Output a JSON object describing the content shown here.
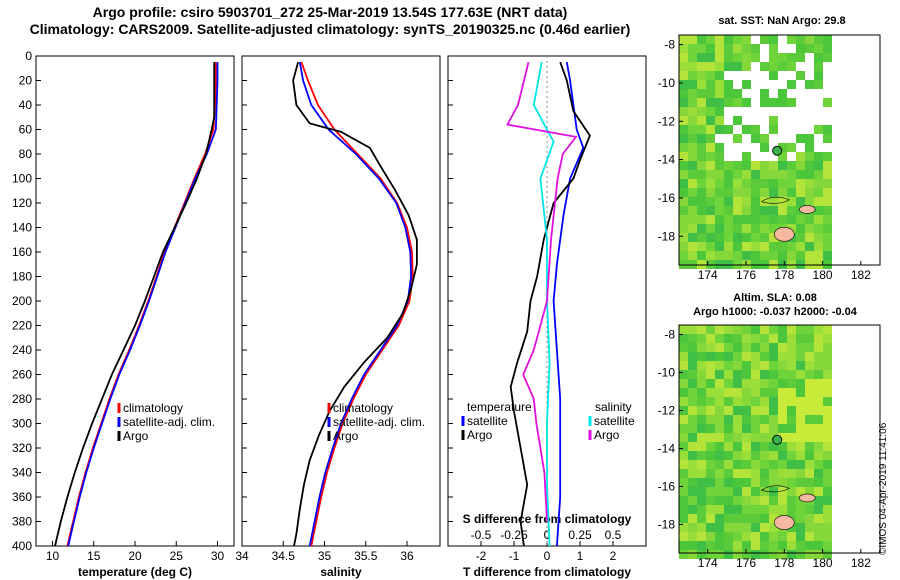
{
  "title_line1": "Argo profile: csiro 5903701_272 25-Mar-2019 13.54S 177.63E (NRT data)",
  "title_line2": "Climatology: CARS2009. Satellite-adjusted climatology: synTS_20190325.nc (0.46d earlier)",
  "watermark": "©IMOS 04-Apr-2019 11:41:06",
  "colors": {
    "climatology": "#ff0000",
    "satellite": "#0000ff",
    "argo": "#000000",
    "sal_satellite": "#00e5e5",
    "sal_argo": "#e010e0"
  },
  "chart_data": [
    {
      "type": "line",
      "id": "temperature",
      "xlabel": "temperature (deg C)",
      "ylabel": "",
      "xlim": [
        8,
        32
      ],
      "ylim": [
        400,
        0
      ],
      "xticks": [
        "10",
        "15",
        "20",
        "25",
        "30"
      ],
      "yticks": [
        "0",
        "20",
        "40",
        "60",
        "80",
        "100",
        "120",
        "140",
        "160",
        "180",
        "200",
        "220",
        "240",
        "260",
        "280",
        "300",
        "320",
        "340",
        "360",
        "380",
        "400"
      ],
      "legend": [
        "climatology",
        "satellite-adj. clim.",
        "Argo"
      ],
      "series": [
        {
          "name": "climatology",
          "color": "#ff0000",
          "points": [
            [
              29.8,
              5
            ],
            [
              29.8,
              20
            ],
            [
              29.7,
              40
            ],
            [
              29.5,
              60
            ],
            [
              28.5,
              80
            ],
            [
              27.2,
              100
            ],
            [
              26.0,
              120
            ],
            [
              24.8,
              140
            ],
            [
              23.6,
              160
            ],
            [
              22.6,
              180
            ],
            [
              21.6,
              200
            ],
            [
              20.5,
              220
            ],
            [
              19.3,
              240
            ],
            [
              18.0,
              260
            ],
            [
              16.9,
              280
            ],
            [
              15.9,
              300
            ],
            [
              14.9,
              320
            ],
            [
              14.0,
              340
            ],
            [
              13.2,
              360
            ],
            [
              12.5,
              380
            ],
            [
              11.8,
              400
            ]
          ]
        },
        {
          "name": "satellite-adj. clim.",
          "color": "#0000ff",
          "points": [
            [
              30.0,
              5
            ],
            [
              30.0,
              20
            ],
            [
              29.9,
              40
            ],
            [
              29.8,
              60
            ],
            [
              28.7,
              80
            ],
            [
              27.3,
              100
            ],
            [
              26.1,
              120
            ],
            [
              24.9,
              140
            ],
            [
              23.7,
              160
            ],
            [
              22.7,
              180
            ],
            [
              21.7,
              200
            ],
            [
              20.6,
              220
            ],
            [
              19.4,
              240
            ],
            [
              18.1,
              260
            ],
            [
              17.0,
              280
            ],
            [
              16.0,
              300
            ],
            [
              15.0,
              320
            ],
            [
              14.1,
              340
            ],
            [
              13.3,
              360
            ],
            [
              12.6,
              380
            ],
            [
              11.9,
              400
            ]
          ]
        },
        {
          "name": "Argo",
          "color": "#000000",
          "points": [
            [
              29.6,
              5
            ],
            [
              29.6,
              20
            ],
            [
              29.6,
              40
            ],
            [
              29.6,
              50
            ],
            [
              29.3,
              60
            ],
            [
              28.6,
              80
            ],
            [
              27.5,
              100
            ],
            [
              26.2,
              120
            ],
            [
              24.8,
              140
            ],
            [
              23.4,
              160
            ],
            [
              22.3,
              180
            ],
            [
              21.2,
              200
            ],
            [
              20.0,
              220
            ],
            [
              18.6,
              240
            ],
            [
              17.2,
              260
            ],
            [
              16.0,
              280
            ],
            [
              14.8,
              300
            ],
            [
              13.7,
              320
            ],
            [
              12.7,
              340
            ],
            [
              11.8,
              360
            ],
            [
              11.0,
              380
            ],
            [
              10.3,
              400
            ]
          ]
        }
      ]
    },
    {
      "type": "line",
      "id": "salinity",
      "xlabel": "salinity",
      "xlim": [
        34.0,
        36.4
      ],
      "ylim": [
        400,
        0
      ],
      "xticks": [
        "34",
        "34.5",
        "35",
        "35.5",
        "36"
      ],
      "legend": [
        "climatology",
        "satellite-adj. clim.",
        "Argo"
      ],
      "series": [
        {
          "name": "climatology",
          "color": "#ff0000",
          "points": [
            [
              34.72,
              5
            ],
            [
              34.8,
              20
            ],
            [
              34.92,
              40
            ],
            [
              35.12,
              60
            ],
            [
              35.4,
              80
            ],
            [
              35.68,
              100
            ],
            [
              35.88,
              120
            ],
            [
              36.0,
              140
            ],
            [
              36.06,
              160
            ],
            [
              36.07,
              180
            ],
            [
              36.03,
              200
            ],
            [
              35.9,
              220
            ],
            [
              35.7,
              240
            ],
            [
              35.5,
              260
            ],
            [
              35.35,
              280
            ],
            [
              35.22,
              300
            ],
            [
              35.12,
              320
            ],
            [
              35.03,
              340
            ],
            [
              34.96,
              360
            ],
            [
              34.9,
              380
            ],
            [
              34.84,
              400
            ]
          ]
        },
        {
          "name": "satellite-adj. clim.",
          "color": "#0000ff",
          "points": [
            [
              34.7,
              5
            ],
            [
              34.74,
              20
            ],
            [
              34.84,
              40
            ],
            [
              35.05,
              60
            ],
            [
              35.38,
              80
            ],
            [
              35.66,
              100
            ],
            [
              35.87,
              120
            ],
            [
              35.98,
              140
            ],
            [
              36.04,
              160
            ],
            [
              36.05,
              180
            ],
            [
              36.01,
              200
            ],
            [
              35.88,
              220
            ],
            [
              35.68,
              240
            ],
            [
              35.48,
              260
            ],
            [
              35.33,
              280
            ],
            [
              35.2,
              300
            ],
            [
              35.1,
              320
            ],
            [
              35.01,
              340
            ],
            [
              34.94,
              360
            ],
            [
              34.88,
              380
            ],
            [
              34.82,
              400
            ]
          ]
        },
        {
          "name": "Argo",
          "color": "#000000",
          "points": [
            [
              34.68,
              5
            ],
            [
              34.62,
              20
            ],
            [
              34.66,
              40
            ],
            [
              34.82,
              55
            ],
            [
              35.2,
              62
            ],
            [
              35.55,
              75
            ],
            [
              35.68,
              90
            ],
            [
              35.86,
              110
            ],
            [
              36.02,
              130
            ],
            [
              36.12,
              150
            ],
            [
              36.12,
              170
            ],
            [
              36.05,
              190
            ],
            [
              35.95,
              210
            ],
            [
              35.76,
              230
            ],
            [
              35.48,
              250
            ],
            [
              35.24,
              270
            ],
            [
              35.06,
              290
            ],
            [
              34.93,
              310
            ],
            [
              34.82,
              330
            ],
            [
              34.75,
              350
            ],
            [
              34.7,
              370
            ],
            [
              34.66,
              390
            ],
            [
              34.63,
              400
            ]
          ]
        }
      ]
    },
    {
      "type": "line",
      "id": "difference",
      "xlabel": "T difference from climatology",
      "x2label": "S difference from climatology",
      "xlim": [
        -3,
        3
      ],
      "ylim": [
        400,
        0
      ],
      "xticks": [
        "-2",
        "-1",
        "0",
        "1",
        "2"
      ],
      "x2ticks": [
        "-0.5",
        "-0.25",
        "0",
        "0.25",
        "0.5"
      ],
      "legend_left_title": "temperature",
      "legend_left": [
        "satellite",
        "Argo"
      ],
      "legend_right_title": "salinity",
      "legend_right": [
        "satellite",
        "Argo"
      ],
      "series": [
        {
          "name": "T satellite",
          "color": "#0000ff",
          "points": [
            [
              0.6,
              5
            ],
            [
              0.7,
              20
            ],
            [
              0.8,
              40
            ],
            [
              0.9,
              60
            ],
            [
              1.1,
              75
            ],
            [
              0.7,
              100
            ],
            [
              0.5,
              130
            ],
            [
              0.3,
              170
            ],
            [
              0.2,
              200
            ],
            [
              0.3,
              240
            ],
            [
              0.4,
              280
            ],
            [
              0.4,
              320
            ],
            [
              0.4,
              360
            ],
            [
              0.3,
              400
            ]
          ]
        },
        {
          "name": "T Argo",
          "color": "#000000",
          "points": [
            [
              0.4,
              5
            ],
            [
              0.6,
              20
            ],
            [
              0.8,
              45
            ],
            [
              1.3,
              65
            ],
            [
              1.0,
              85
            ],
            [
              0.8,
              100
            ],
            [
              0.2,
              120
            ],
            [
              -0.1,
              150
            ],
            [
              -0.3,
              180
            ],
            [
              -0.5,
              200
            ],
            [
              -0.6,
              225
            ],
            [
              -0.9,
              250
            ],
            [
              -1.1,
              270
            ],
            [
              -1.0,
              290
            ],
            [
              -0.8,
              320
            ],
            [
              -0.6,
              350
            ],
            [
              -0.8,
              380
            ],
            [
              -0.7,
              400
            ]
          ]
        },
        {
          "name": "S satellite",
          "color": "#00e5e5",
          "points": [
            [
              -0.04,
              5
            ],
            [
              -0.1,
              40
            ],
            [
              0.05,
              70
            ],
            [
              -0.05,
              100
            ],
            [
              0.0,
              150
            ],
            [
              0.0,
              200
            ],
            [
              0.02,
              250
            ],
            [
              0.0,
              300
            ],
            [
              0.0,
              350
            ],
            [
              0.02,
              400
            ]
          ]
        },
        {
          "name": "S Argo",
          "color": "#e010e0",
          "points": [
            [
              -0.14,
              5
            ],
            [
              -0.22,
              40
            ],
            [
              -0.3,
              56
            ],
            [
              0.22,
              66
            ],
            [
              0.12,
              80
            ],
            [
              0.08,
              100
            ],
            [
              0.03,
              150
            ],
            [
              0.0,
              200
            ],
            [
              -0.1,
              240
            ],
            [
              -0.18,
              260
            ],
            [
              -0.1,
              280
            ],
            [
              -0.08,
              300
            ],
            [
              -0.02,
              340
            ],
            [
              0.0,
              380
            ]
          ]
        }
      ]
    },
    {
      "type": "heatmap",
      "id": "sst-map",
      "title": "sat. SST: NaN Argo: 29.8",
      "xlim": [
        172.5,
        183
      ],
      "ylim": [
        -19.5,
        -7.5
      ],
      "xticks": [
        "174",
        "176",
        "178",
        "180",
        "182"
      ],
      "yticks": [
        "-8",
        "-10",
        "-12",
        "-14",
        "-16",
        "-18"
      ],
      "argo_position": [
        177.63,
        -13.54
      ]
    },
    {
      "type": "heatmap",
      "id": "sla-map",
      "title_line1": "Altim. SLA: 0.08",
      "title_line2": "Argo h1000: -0.037 h2000: -0.04",
      "xlim": [
        172.5,
        183
      ],
      "ylim": [
        -19.5,
        -7.5
      ],
      "xticks": [
        "174",
        "176",
        "178",
        "180",
        "182"
      ],
      "yticks": [
        "-8",
        "-10",
        "-12",
        "-14",
        "-16",
        "-18"
      ],
      "argo_position": [
        177.63,
        -13.54
      ]
    }
  ]
}
